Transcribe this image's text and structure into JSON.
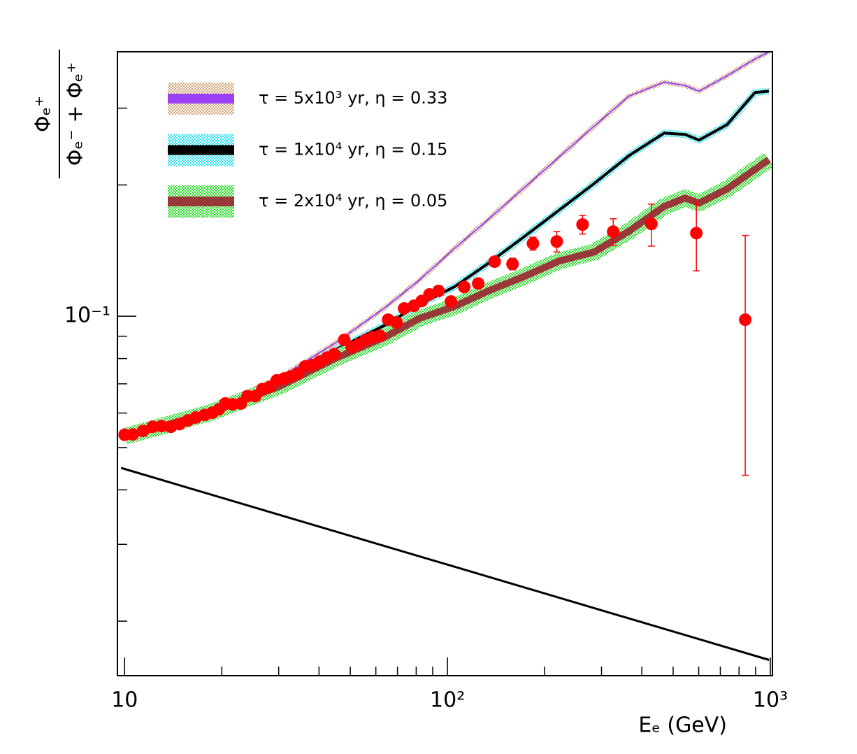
{
  "chart_data": {
    "type": "line",
    "xlabel": "Eₑ (GeV)",
    "ylabel_numerator": "Φₑ⁺",
    "ylabel_denominator": "Φₑ⁻ + Φₑ⁺",
    "log_x": true,
    "log_y": true,
    "xlim": [
      9.5,
      1015
    ],
    "ylim": [
      0.015,
      0.404
    ],
    "xticks": [
      10,
      {
        "value": 100,
        "label": "10²"
      },
      {
        "value": 1000,
        "label": "10³"
      }
    ],
    "xminorticks": [
      20,
      30,
      40,
      50,
      60,
      70,
      80,
      90,
      200,
      300,
      400,
      500,
      600,
      700,
      800,
      900
    ],
    "yticks": [
      {
        "value": 0.1,
        "label": "10⁻¹"
      }
    ],
    "yminorticks": [
      0.02,
      0.03,
      0.04,
      0.05,
      0.06,
      0.07,
      0.08,
      0.09,
      0.2,
      0.3
    ],
    "x": [
      10.0,
      18.4,
      30.2,
      45.0,
      63.9,
      81.9,
      105.1,
      134.9,
      173.0,
      221.9,
      284.8,
      365.4,
      468.8,
      544.4,
      601.5,
      734,
      896,
      990
    ],
    "series": [
      {
        "name": "τ = 5x10³ yr, η = 0.33",
        "color": "#9b40f5",
        "band_color": "#d2a679",
        "values": [
          0.0535,
          0.0612,
          0.0723,
          0.0869,
          0.1045,
          0.1211,
          0.143,
          0.1676,
          0.1972,
          0.232,
          0.2729,
          0.3198,
          0.3442,
          0.338,
          0.3281,
          0.3558,
          0.3888,
          0.4035
        ]
      },
      {
        "name": "τ = 1x10⁴ yr, η = 0.15",
        "color": "#000000",
        "band_color": "#2fe3f0",
        "values": [
          0.0535,
          0.0617,
          0.0709,
          0.0838,
          0.0953,
          0.1065,
          0.1168,
          0.1328,
          0.1523,
          0.1752,
          0.2016,
          0.2337,
          0.263,
          0.2611,
          0.2534,
          0.2749,
          0.3258,
          0.3281
        ]
      },
      {
        "name": "τ = 2x10⁴ yr, η = 0.05",
        "color": "#993838",
        "band_color": "#22dd22",
        "values": [
          0.053,
          0.0601,
          0.0691,
          0.0801,
          0.0895,
          0.0989,
          0.1053,
          0.1146,
          0.1234,
          0.1339,
          0.1404,
          0.1568,
          0.1785,
          0.1866,
          0.1818,
          0.1957,
          0.217,
          0.2286
        ]
      }
    ],
    "reference_line": {
      "x": [
        9.75,
        991
      ],
      "values": [
        0.0449,
        0.0163
      ],
      "color": "#000000"
    },
    "points": {
      "color": "#ff0000",
      "x": [
        10.0,
        10.6,
        11.4,
        12.2,
        13.0,
        13.9,
        14.8,
        15.7,
        16.6,
        17.7,
        18.7,
        19.6,
        20.5,
        21.6,
        22.9,
        24.0,
        25.4,
        26.7,
        28.2,
        29.6,
        31.2,
        32.7,
        34.4,
        36.2,
        38.2,
        40.2,
        42.4,
        44.6,
        47.9,
        50.5,
        53.1,
        55.8,
        58.6,
        61.7,
        65.5,
        69.5,
        73.4,
        78.7,
        83.2,
        87.9,
        93.8,
        102.5,
        112.7,
        124.5,
        140,
        159,
        184,
        218,
        262,
        326,
        428,
        590,
        836
      ],
      "values": [
        0.0535,
        0.0536,
        0.0546,
        0.0558,
        0.056,
        0.0558,
        0.0566,
        0.0577,
        0.0586,
        0.0594,
        0.0601,
        0.0612,
        0.0631,
        0.0628,
        0.0631,
        0.0656,
        0.0656,
        0.0681,
        0.0689,
        0.0713,
        0.072,
        0.0728,
        0.0739,
        0.0767,
        0.0773,
        0.0787,
        0.0804,
        0.0819,
        0.0883,
        0.085,
        0.0863,
        0.0883,
        0.0895,
        0.0902,
        0.0982,
        0.0968,
        0.1042,
        0.1057,
        0.1084,
        0.1122,
        0.1143,
        0.1081,
        0.1167,
        0.1189,
        0.1334,
        0.1318,
        0.1468,
        0.1484,
        0.1623,
        0.1563,
        0.1628,
        0.1551,
        0.0982
      ],
      "errors": [
        0.001,
        0.001,
        0.001,
        0.001,
        0.001,
        0.001,
        0.001,
        0.001,
        0.001,
        0.001,
        0.001,
        0.001,
        0.001,
        0.001,
        0.001,
        0.001,
        0.001,
        0.001,
        0.001,
        0.001,
        0.001,
        0.001,
        0.001,
        0.001,
        0.001,
        0.001,
        0.001,
        0.001,
        0.001,
        0.001,
        0.001,
        0.001,
        0.002,
        0.002,
        0.002,
        0.002,
        0.002,
        0.002,
        0.002,
        0.002,
        0.002,
        0.002,
        0.002,
        0.003,
        0.003,
        0.004,
        0.005,
        0.008,
        0.008,
        0.011,
        0.018,
        0.028,
        0.055
      ]
    }
  }
}
